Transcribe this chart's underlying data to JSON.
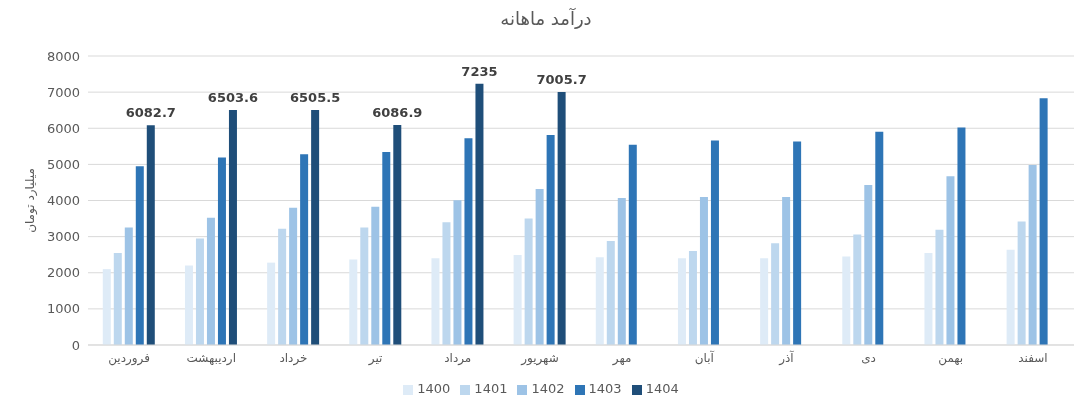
{
  "chart_data": {
    "type": "bar",
    "title": "درآمد ماهانه",
    "ylabel": "میلیارد تومان",
    "categories": [
      "فروردین",
      "اردیبهشت",
      "خرداد",
      "تیر",
      "مرداد",
      "شهریور",
      "مهر",
      "آبان",
      "آذر",
      "دی",
      "بهمن",
      "اسفند"
    ],
    "series": [
      {
        "name": "1400",
        "color": "#deebf7",
        "values": [
          2100,
          2200,
          2280,
          2370,
          2400,
          2490,
          2430,
          2400,
          2400,
          2450,
          2550,
          2640
        ]
      },
      {
        "name": "1401",
        "color": "#bdd7ee",
        "values": [
          2550,
          2950,
          3220,
          3250,
          3400,
          3500,
          2880,
          2600,
          2820,
          3060,
          3190,
          3420
        ]
      },
      {
        "name": "1402",
        "color": "#9dc3e6",
        "values": [
          3250,
          3520,
          3800,
          3830,
          4010,
          4320,
          4070,
          4100,
          4100,
          4430,
          4670,
          4980
        ]
      },
      {
        "name": "1403",
        "color": "#2e75b6",
        "values": [
          4950,
          5190,
          5280,
          5340,
          5720,
          5810,
          5540,
          5660,
          5630,
          5900,
          6020,
          6830
        ]
      },
      {
        "name": "1404",
        "color": "#1f4e79",
        "values": [
          6082.7,
          6503.6,
          6505.5,
          6086.9,
          7235,
          7005.7,
          null,
          null,
          null,
          null,
          null,
          null
        ],
        "value_labels": [
          "6082.7",
          "6503.6",
          "6505.5",
          "6086.9",
          "7235",
          "7005.7",
          null,
          null,
          null,
          null,
          null,
          null
        ]
      }
    ],
    "ylim": [
      0,
      8000
    ],
    "yticks": [
      0,
      1000,
      2000,
      3000,
      4000,
      5000,
      6000,
      7000,
      8000
    ],
    "grid": "y",
    "legend": "bottom"
  }
}
